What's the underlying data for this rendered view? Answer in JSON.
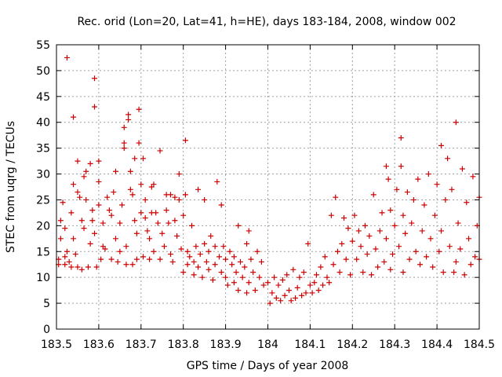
{
  "chart_data": {
    "type": "scatter",
    "title": "Rec. orid (Lon=20, Lat=41, h=HE), days 183-184, 2008, window 002",
    "xlabel": "GPS time / Days of year 2008",
    "ylabel": "STEC from uqrg / TECUs",
    "xlim": [
      183.5,
      184.5
    ],
    "ylim": [
      0,
      55
    ],
    "xticks": [
      "183.5",
      "183.6",
      "183.7",
      "183.8",
      "183.9",
      "184",
      "184.1",
      "184.2",
      "184.3",
      "184.4",
      "184.5"
    ],
    "yticks": [
      "0",
      "5",
      "10",
      "15",
      "20",
      "25",
      "30",
      "35",
      "40",
      "45",
      "50",
      "55"
    ],
    "grid": true,
    "marker": "plus",
    "color": "#cc0000",
    "series": [
      {
        "name": "STEC",
        "points": [
          [
            183.505,
            12.5
          ],
          [
            183.505,
            13.5
          ],
          [
            183.51,
            17.5
          ],
          [
            183.51,
            21.0
          ],
          [
            183.515,
            24.5
          ],
          [
            183.52,
            19.5
          ],
          [
            183.52,
            14.0
          ],
          [
            183.52,
            12.5
          ],
          [
            183.525,
            52.5
          ],
          [
            183.525,
            15.0
          ],
          [
            183.53,
            13.0
          ],
          [
            183.535,
            12.0
          ],
          [
            183.535,
            22.5
          ],
          [
            183.54,
            28.0
          ],
          [
            183.54,
            41.0
          ],
          [
            183.54,
            17.5
          ],
          [
            183.545,
            14.5
          ],
          [
            183.55,
            26.5
          ],
          [
            183.55,
            32.5
          ],
          [
            183.55,
            12.0
          ],
          [
            183.555,
            25.5
          ],
          [
            183.56,
            11.5
          ],
          [
            183.56,
            21.0
          ],
          [
            183.565,
            19.5
          ],
          [
            183.565,
            29.5
          ],
          [
            183.57,
            25.0
          ],
          [
            183.57,
            30.5
          ],
          [
            183.575,
            12.0
          ],
          [
            183.58,
            16.5
          ],
          [
            183.58,
            32.0
          ],
          [
            183.585,
            21.0
          ],
          [
            183.585,
            23.0
          ],
          [
            183.59,
            48.5
          ],
          [
            183.59,
            43.0
          ],
          [
            183.59,
            18.5
          ],
          [
            183.595,
            12.0
          ],
          [
            183.6,
            24.0
          ],
          [
            183.6,
            28.5
          ],
          [
            183.6,
            32.5
          ],
          [
            183.605,
            13.5
          ],
          [
            183.61,
            16.0
          ],
          [
            183.61,
            20.5
          ],
          [
            183.615,
            15.5
          ],
          [
            183.62,
            25.5
          ],
          [
            183.625,
            23.0
          ],
          [
            183.63,
            13.5
          ],
          [
            183.63,
            22.0
          ],
          [
            183.635,
            26.5
          ],
          [
            183.64,
            17.5
          ],
          [
            183.64,
            30.5
          ],
          [
            183.645,
            13.0
          ],
          [
            183.65,
            20.5
          ],
          [
            183.65,
            15.0
          ],
          [
            183.655,
            24.0
          ],
          [
            183.66,
            35.0
          ],
          [
            183.66,
            36.0
          ],
          [
            183.66,
            39.0
          ],
          [
            183.665,
            16.0
          ],
          [
            183.665,
            12.5
          ],
          [
            183.67,
            40.5
          ],
          [
            183.67,
            41.5
          ],
          [
            183.675,
            30.5
          ],
          [
            183.675,
            27.0
          ],
          [
            183.68,
            26.0
          ],
          [
            183.68,
            12.5
          ],
          [
            183.685,
            33.0
          ],
          [
            183.685,
            21.0
          ],
          [
            183.69,
            13.5
          ],
          [
            183.69,
            18.5
          ],
          [
            183.695,
            36.0
          ],
          [
            183.695,
            42.5
          ],
          [
            183.7,
            28.0
          ],
          [
            183.7,
            22.5
          ],
          [
            183.705,
            33.0
          ],
          [
            183.705,
            14.0
          ],
          [
            183.71,
            25.0
          ],
          [
            183.71,
            21.5
          ],
          [
            183.715,
            19.0
          ],
          [
            183.72,
            13.5
          ],
          [
            183.72,
            17.5
          ],
          [
            183.725,
            27.5
          ],
          [
            183.725,
            22.5
          ],
          [
            183.73,
            28.0
          ],
          [
            183.73,
            15.0
          ],
          [
            183.735,
            22.5
          ],
          [
            183.74,
            20.5
          ],
          [
            183.745,
            34.5
          ],
          [
            183.745,
            13.5
          ],
          [
            183.75,
            18.5
          ],
          [
            183.755,
            16.0
          ],
          [
            183.76,
            26.0
          ],
          [
            183.76,
            23.0
          ],
          [
            183.765,
            20.5
          ],
          [
            183.77,
            14.5
          ],
          [
            183.77,
            26.0
          ],
          [
            183.775,
            13.0
          ],
          [
            183.78,
            25.5
          ],
          [
            183.78,
            21.0
          ],
          [
            183.785,
            18.0
          ],
          [
            183.79,
            25.0
          ],
          [
            183.79,
            30.0
          ],
          [
            183.795,
            15.5
          ],
          [
            183.8,
            22.0
          ],
          [
            183.8,
            11.0
          ],
          [
            183.805,
            36.5
          ],
          [
            183.805,
            26.0
          ],
          [
            183.81,
            12.5
          ],
          [
            183.81,
            15.0
          ],
          [
            183.815,
            14.0
          ],
          [
            183.82,
            20.0
          ],
          [
            183.825,
            10.5
          ],
          [
            183.825,
            13.0
          ],
          [
            183.83,
            16.0
          ],
          [
            183.835,
            27.0
          ],
          [
            183.835,
            12.0
          ],
          [
            183.84,
            14.5
          ],
          [
            183.845,
            10.0
          ],
          [
            183.85,
            25.0
          ],
          [
            183.85,
            16.5
          ],
          [
            183.855,
            13.0
          ],
          [
            183.86,
            11.5
          ],
          [
            183.86,
            15.0
          ],
          [
            183.865,
            18.0
          ],
          [
            183.87,
            9.5
          ],
          [
            183.875,
            12.5
          ],
          [
            183.875,
            16.0
          ],
          [
            183.88,
            28.5
          ],
          [
            183.885,
            14.0
          ],
          [
            183.89,
            11.0
          ],
          [
            183.89,
            24.0
          ],
          [
            183.895,
            16.0
          ],
          [
            183.9,
            13.5
          ],
          [
            183.9,
            10.0
          ],
          [
            183.905,
            8.5
          ],
          [
            183.91,
            15.0
          ],
          [
            183.915,
            12.5
          ],
          [
            183.92,
            9.0
          ],
          [
            183.92,
            14.0
          ],
          [
            183.925,
            11.0
          ],
          [
            183.93,
            20.0
          ],
          [
            183.93,
            7.5
          ],
          [
            183.935,
            13.0
          ],
          [
            183.94,
            10.0
          ],
          [
            183.945,
            12.0
          ],
          [
            183.95,
            16.5
          ],
          [
            183.95,
            7.0
          ],
          [
            183.955,
            19.0
          ],
          [
            183.955,
            9.0
          ],
          [
            183.96,
            13.5
          ],
          [
            183.965,
            11.0
          ],
          [
            183.97,
            7.5
          ],
          [
            183.975,
            15.0
          ],
          [
            183.98,
            10.0
          ],
          [
            183.985,
            13.0
          ],
          [
            183.99,
            8.5
          ],
          [
            184.0,
            9.0
          ],
          [
            184.005,
            5.0
          ],
          [
            184.01,
            7.0
          ],
          [
            184.015,
            10.0
          ],
          [
            184.02,
            6.0
          ],
          [
            184.025,
            8.5
          ],
          [
            184.03,
            5.5
          ],
          [
            184.035,
            9.5
          ],
          [
            184.04,
            6.5
          ],
          [
            184.045,
            10.5
          ],
          [
            184.05,
            7.5
          ],
          [
            184.055,
            5.5
          ],
          [
            184.06,
            11.5
          ],
          [
            184.065,
            6.0
          ],
          [
            184.07,
            8.0
          ],
          [
            184.075,
            10.0
          ],
          [
            184.08,
            6.5
          ],
          [
            184.085,
            11.0
          ],
          [
            184.09,
            7.0
          ],
          [
            184.095,
            16.5
          ],
          [
            184.1,
            8.5
          ],
          [
            184.105,
            7.0
          ],
          [
            184.11,
            9.0
          ],
          [
            184.115,
            10.5
          ],
          [
            184.12,
            7.5
          ],
          [
            184.125,
            12.0
          ],
          [
            184.13,
            8.5
          ],
          [
            184.135,
            14.0
          ],
          [
            184.14,
            10.0
          ],
          [
            184.145,
            9.0
          ],
          [
            184.15,
            22.0
          ],
          [
            184.155,
            12.5
          ],
          [
            184.16,
            25.5
          ],
          [
            184.165,
            15.0
          ],
          [
            184.17,
            11.0
          ],
          [
            184.175,
            16.5
          ],
          [
            184.18,
            21.5
          ],
          [
            184.185,
            13.5
          ],
          [
            184.19,
            19.5
          ],
          [
            184.195,
            10.5
          ],
          [
            184.2,
            17.0
          ],
          [
            184.205,
            22.0
          ],
          [
            184.21,
            13.5
          ],
          [
            184.215,
            19.0
          ],
          [
            184.22,
            16.0
          ],
          [
            184.225,
            11.0
          ],
          [
            184.23,
            20.0
          ],
          [
            184.235,
            14.5
          ],
          [
            184.24,
            18.0
          ],
          [
            184.245,
            10.5
          ],
          [
            184.25,
            26.0
          ],
          [
            184.255,
            15.5
          ],
          [
            184.26,
            12.0
          ],
          [
            184.265,
            19.0
          ],
          [
            184.27,
            22.5
          ],
          [
            184.275,
            13.0
          ],
          [
            184.28,
            31.5
          ],
          [
            184.28,
            17.5
          ],
          [
            184.285,
            29.0
          ],
          [
            184.29,
            11.5
          ],
          [
            184.29,
            23.0
          ],
          [
            184.295,
            14.5
          ],
          [
            184.3,
            20.0
          ],
          [
            184.305,
            27.0
          ],
          [
            184.31,
            16.0
          ],
          [
            184.315,
            31.5
          ],
          [
            184.315,
            37.0
          ],
          [
            184.32,
            11.0
          ],
          [
            184.32,
            22.0
          ],
          [
            184.325,
            18.5
          ],
          [
            184.33,
            26.5
          ],
          [
            184.335,
            13.5
          ],
          [
            184.34,
            20.5
          ],
          [
            184.345,
            25.0
          ],
          [
            184.35,
            15.0
          ],
          [
            184.355,
            29.0
          ],
          [
            184.36,
            12.5
          ],
          [
            184.365,
            19.0
          ],
          [
            184.37,
            24.0
          ],
          [
            184.375,
            14.0
          ],
          [
            184.38,
            30.0
          ],
          [
            184.385,
            17.5
          ],
          [
            184.39,
            12.0
          ],
          [
            184.395,
            22.0
          ],
          [
            184.4,
            28.0
          ],
          [
            184.405,
            15.0
          ],
          [
            184.41,
            35.5
          ],
          [
            184.41,
            19.0
          ],
          [
            184.415,
            11.0
          ],
          [
            184.42,
            25.0
          ],
          [
            184.425,
            33.0
          ],
          [
            184.43,
            16.0
          ],
          [
            184.435,
            27.0
          ],
          [
            184.44,
            11.0
          ],
          [
            184.445,
            40.0
          ],
          [
            184.445,
            13.0
          ],
          [
            184.45,
            20.5
          ],
          [
            184.455,
            15.5
          ],
          [
            184.46,
            31.0
          ],
          [
            184.465,
            10.5
          ],
          [
            184.47,
            24.5
          ],
          [
            184.475,
            17.5
          ],
          [
            184.48,
            12.5
          ],
          [
            184.485,
            29.5
          ],
          [
            184.49,
            14.0
          ],
          [
            184.495,
            20.0
          ],
          [
            184.5,
            25.5
          ],
          [
            184.5,
            13.5
          ]
        ]
      }
    ]
  }
}
